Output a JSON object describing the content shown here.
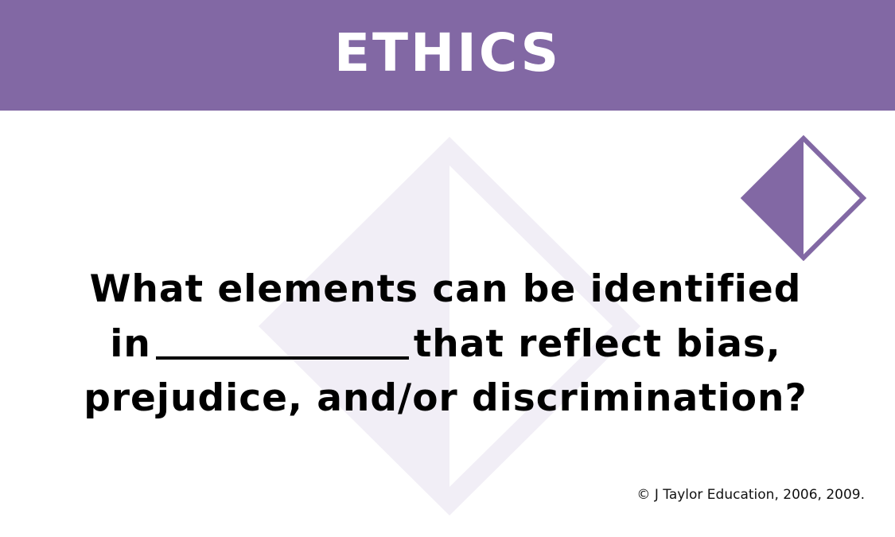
{
  "colors": {
    "accent": "#8268a4",
    "watermark": "#f1eef6",
    "text": "#000000",
    "background": "#ffffff"
  },
  "header": {
    "title": "ETHICS"
  },
  "badge": {
    "icon": "half-filled-diamond-icon"
  },
  "question": {
    "line1": "What elements can be identified",
    "line2_before": "in",
    "line2_after": "that reflect bias,",
    "line3": "prejudice, and/or discrimination?"
  },
  "footer": {
    "copyright": "© J Taylor Education, 2006, 2009."
  }
}
